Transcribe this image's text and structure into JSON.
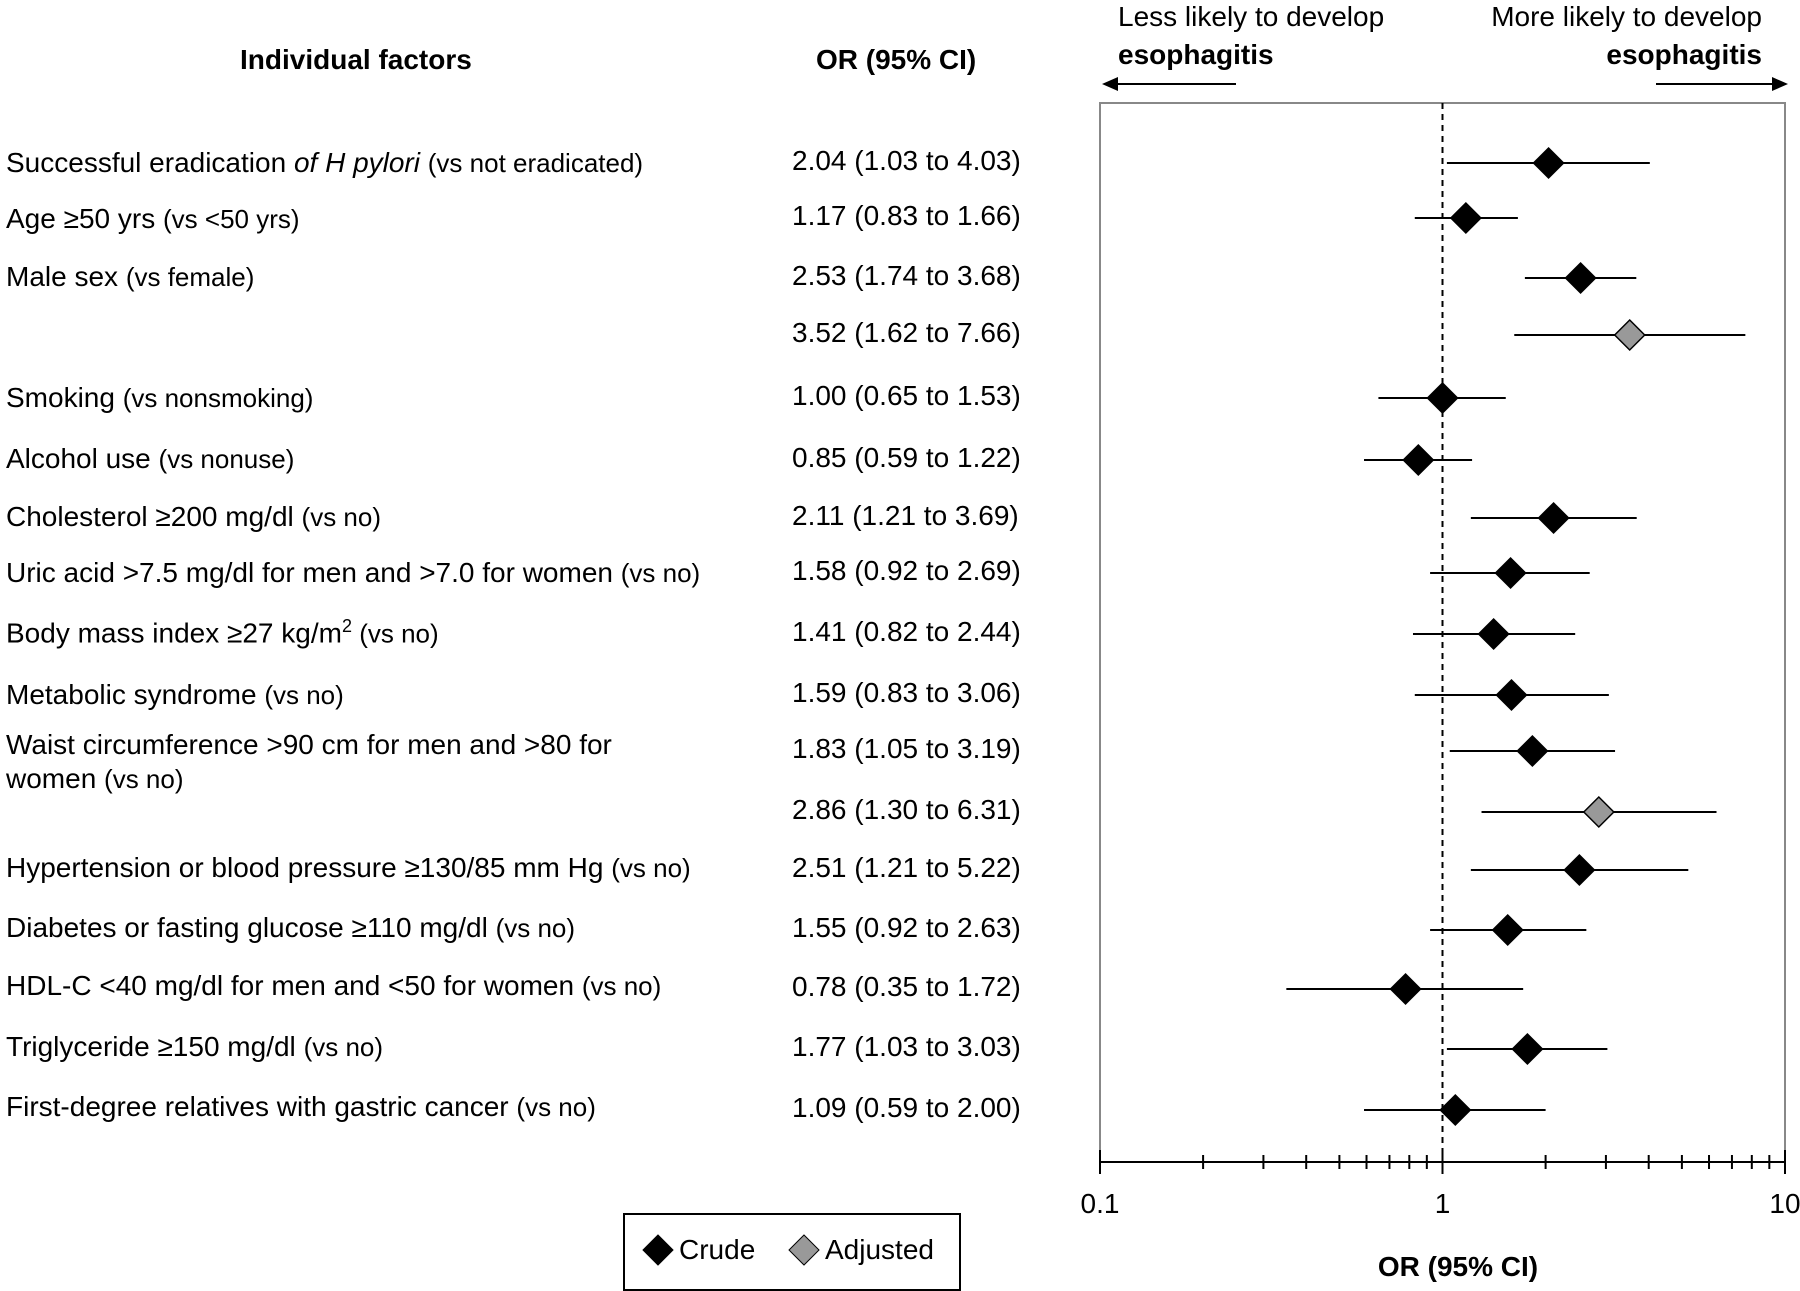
{
  "headers": {
    "factors": "Individual factors",
    "or_ci": "OR (95% CI)"
  },
  "direction": {
    "left_line1": "Less likely to develop",
    "left_line2": "esophagitis",
    "right_line1": "More likely to develop",
    "right_line2": "esophagitis"
  },
  "legend": {
    "crude": "Crude",
    "adjusted": "Adjusted"
  },
  "colors": {
    "crude": "#000000",
    "adjusted": "#999999"
  },
  "labels": [
    {
      "pre": "Successful eradication ",
      "ital": "of H  pylori",
      "post": " ",
      "vs": "(vs not eradicated)"
    },
    {
      "pre": "Age ≥50 yrs ",
      "ital": "",
      "post": "",
      "vs": "(vs <50 yrs)"
    },
    {
      "pre": "Male sex ",
      "ital": "",
      "post": "",
      "vs": "(vs female)"
    },
    {
      "pre": "Smoking ",
      "ital": "",
      "post": "",
      "vs": "(vs nonsmoking)"
    },
    {
      "pre": "Alcohol use ",
      "ital": "",
      "post": "",
      "vs": "(vs nonuse)"
    },
    {
      "pre": "Cholesterol ≥200 mg/dl ",
      "ital": "",
      "post": "",
      "vs": "(vs no)"
    },
    {
      "pre": "Uric acid >7.5 mg/dl for men and >7.0 for women ",
      "ital": "",
      "post": "",
      "vs": "(vs no)"
    },
    {
      "pre": "Body mass index ≥27 kg/m",
      "ital": "",
      "post": "",
      "sup": "2",
      "vs": " (vs no)"
    },
    {
      "pre": "Metabolic syndrome ",
      "ital": "",
      "post": "",
      "vs": "(vs no)"
    },
    {
      "pre": "Waist circumference >90 cm for men and >80 for",
      "ital": "",
      "post": "",
      "line2": "women ",
      "vs": "(vs no)"
    },
    {
      "pre": "Hypertension or blood pressure ≥130/85 mm Hg ",
      "ital": "",
      "post": "",
      "vs": "(vs no)"
    },
    {
      "pre": "Diabetes or fasting glucose ≥110 mg/dl ",
      "ital": "",
      "post": "",
      "vs": "(vs no)"
    },
    {
      "pre": "HDL-C <40 mg/dl for men and <50 for women ",
      "ital": "",
      "post": "",
      "vs": "(vs no)"
    },
    {
      "pre": "Triglyceride ≥150 mg/dl ",
      "ital": "",
      "post": "",
      "vs": "(vs no)"
    },
    {
      "pre": "First-degree relatives with gastric cancer ",
      "ital": "",
      "post": "",
      "vs": "(vs no)"
    }
  ],
  "chart_data": {
    "type": "forest",
    "x_scale": "log",
    "xlim": [
      0.1,
      10
    ],
    "x_ticks": [
      "0.1",
      "1",
      "10"
    ],
    "xlabel": "OR (95% CI)",
    "reference_line": 1,
    "series": [
      {
        "name": "Crude"
      },
      {
        "name": "Adjusted"
      }
    ],
    "rows": [
      {
        "or": 2.04,
        "lo": 1.03,
        "hi": 4.03,
        "text": "2.04 (1.03 to 4.03)",
        "type": "Crude"
      },
      {
        "or": 1.17,
        "lo": 0.83,
        "hi": 1.66,
        "text": "1.17 (0.83 to 1.66)",
        "type": "Crude"
      },
      {
        "or": 2.53,
        "lo": 1.74,
        "hi": 3.68,
        "text": "2.53 (1.74 to 3.68)",
        "type": "Crude"
      },
      {
        "or": 3.52,
        "lo": 1.62,
        "hi": 7.66,
        "text": "3.52 (1.62 to 7.66)",
        "type": "Adjusted"
      },
      {
        "or": 1.0,
        "lo": 0.65,
        "hi": 1.53,
        "text": "1.00 (0.65 to 1.53)",
        "type": "Crude"
      },
      {
        "or": 0.85,
        "lo": 0.59,
        "hi": 1.22,
        "text": "0.85 (0.59 to 1.22)",
        "type": "Crude"
      },
      {
        "or": 2.11,
        "lo": 1.21,
        "hi": 3.69,
        "text": "2.11 (1.21 to 3.69)",
        "type": "Crude"
      },
      {
        "or": 1.58,
        "lo": 0.92,
        "hi": 2.69,
        "text": "1.58 (0.92 to 2.69)",
        "type": "Crude"
      },
      {
        "or": 1.41,
        "lo": 0.82,
        "hi": 2.44,
        "text": "1.41 (0.82 to 2.44)",
        "type": "Crude"
      },
      {
        "or": 1.59,
        "lo": 0.83,
        "hi": 3.06,
        "text": "1.59 (0.83 to 3.06)",
        "type": "Crude"
      },
      {
        "or": 1.83,
        "lo": 1.05,
        "hi": 3.19,
        "text": "1.83 (1.05 to 3.19)",
        "type": "Crude"
      },
      {
        "or": 2.86,
        "lo": 1.3,
        "hi": 6.31,
        "text": "2.86 (1.30 to 6.31)",
        "type": "Adjusted"
      },
      {
        "or": 2.51,
        "lo": 1.21,
        "hi": 5.22,
        "text": "2.51 (1.21 to 5.22)",
        "type": "Crude"
      },
      {
        "or": 1.55,
        "lo": 0.92,
        "hi": 2.63,
        "text": "1.55 (0.92 to 2.63)",
        "type": "Crude"
      },
      {
        "or": 0.78,
        "lo": 0.35,
        "hi": 1.72,
        "text": "0.78 (0.35 to 1.72)",
        "type": "Crude"
      },
      {
        "or": 1.77,
        "lo": 1.03,
        "hi": 3.03,
        "text": "1.77 (1.03 to 3.03)",
        "type": "Crude"
      },
      {
        "or": 1.09,
        "lo": 0.59,
        "hi": 2.0,
        "text": "1.09 (0.59 to 2.00)",
        "type": "Crude"
      }
    ]
  }
}
